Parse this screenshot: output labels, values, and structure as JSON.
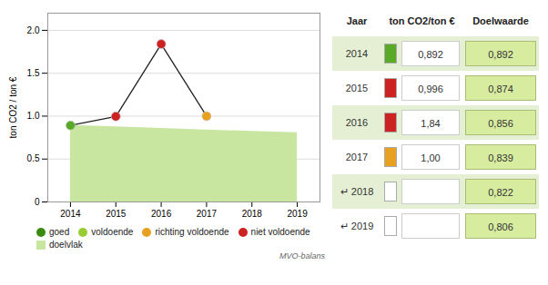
{
  "chart_data": [
    {
      "type": "line",
      "ylabel": "ton CO2 / ton €",
      "x": [
        2014,
        2015,
        2016,
        2017,
        2018,
        2019
      ],
      "xlim": [
        2013.5,
        2019.5
      ],
      "xticks": [
        2014,
        2015,
        2016,
        2017,
        2018,
        2019
      ],
      "ylim": [
        0,
        2.2
      ],
      "yticks": [
        0,
        0.5,
        {
          "value": 1.0,
          "label": "1.0"
        },
        1.5,
        {
          "value": 2.0,
          "label": "2.0"
        }
      ],
      "grid": "y",
      "series": [
        {
          "name": "goed",
          "type": "scatter",
          "color": "#3a8a10",
          "values": [
            null,
            null,
            null,
            null,
            null,
            null
          ]
        },
        {
          "name": "voldoende",
          "type": "scatter",
          "color": "#99cc33",
          "values": [
            null,
            null,
            null,
            null,
            null,
            null
          ]
        },
        {
          "name": "richting voldoende",
          "type": "scatter",
          "color": "#e8a020",
          "values": [
            null,
            null,
            null,
            null,
            null,
            null
          ]
        },
        {
          "name": "niet voldoende",
          "type": "scatter",
          "color": "#cc2222",
          "values": [
            null,
            null,
            null,
            null,
            null,
            null
          ]
        },
        {
          "name": "doelvlak",
          "type": "area",
          "color": "#c8e6a0",
          "values": [
            0.892,
            0.874,
            0.856,
            0.839,
            0.822,
            0.806
          ]
        },
        {
          "type": "line",
          "color": "#222222",
          "marker": "circle",
          "colors": [
            "#5aaa2a",
            "#cc2222",
            "#cc2222",
            "#e8a020",
            null,
            null
          ],
          "values": [
            0.892,
            0.996,
            1.84,
            1.0,
            null,
            null
          ]
        }
      ],
      "annotations": [
        {
          "text": "MVO-balans"
        }
      ]
    },
    {
      "type": "table",
      "columns": [
        "Jaar",
        "ton CO2/ton €",
        "Doelwaarde"
      ],
      "rows": [
        [
          "2014",
          "0,892",
          "0,892"
        ],
        [
          "2015",
          "0,996",
          "0,874"
        ],
        [
          "2016",
          "1,84",
          "0,856"
        ],
        [
          "2017",
          "1,00",
          "0,839"
        ],
        [
          "↵ 2018",
          null,
          "0,822"
        ],
        [
          "↵ 2019",
          null,
          "0,806"
        ]
      ],
      "colors": [
        "#5aaa2a",
        "#cc2222",
        "#cc2222",
        "#e8a020",
        "#ffffff",
        "#ffffff"
      ]
    }
  ]
}
